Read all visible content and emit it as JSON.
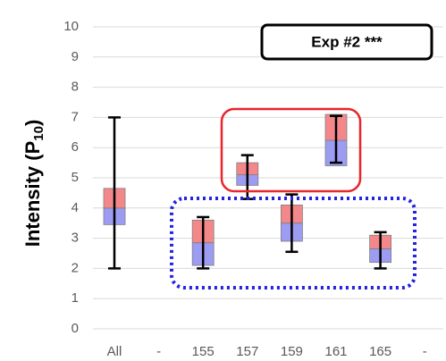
{
  "chart_data": {
    "type": "box",
    "ylabel": [
      "Intensity (P",
      "10",
      ")"
    ],
    "annotation": "Exp #2  ***",
    "categories": [
      "All",
      "-",
      "155",
      "157",
      "159",
      "161",
      "165",
      "-"
    ],
    "min": [
      2.0,
      null,
      2.0,
      4.3,
      2.55,
      5.5,
      2.0,
      null
    ],
    "q1": [
      3.45,
      null,
      2.1,
      4.75,
      2.9,
      5.4,
      2.2,
      null
    ],
    "median": [
      4.0,
      null,
      2.85,
      5.1,
      3.5,
      6.24,
      2.65,
      null
    ],
    "q3": [
      4.65,
      null,
      3.6,
      5.5,
      4.1,
      7.1,
      3.1,
      null
    ],
    "max": [
      7.0,
      null,
      3.7,
      5.75,
      4.45,
      7.05,
      3.2,
      null
    ],
    "lower_color": "#9b9cf2",
    "upper_color": "#f4878a",
    "ylim": [
      0,
      10
    ],
    "yticks": [
      0,
      1,
      2,
      3,
      4,
      5,
      6,
      7,
      8,
      9,
      10
    ],
    "grid": true
  }
}
